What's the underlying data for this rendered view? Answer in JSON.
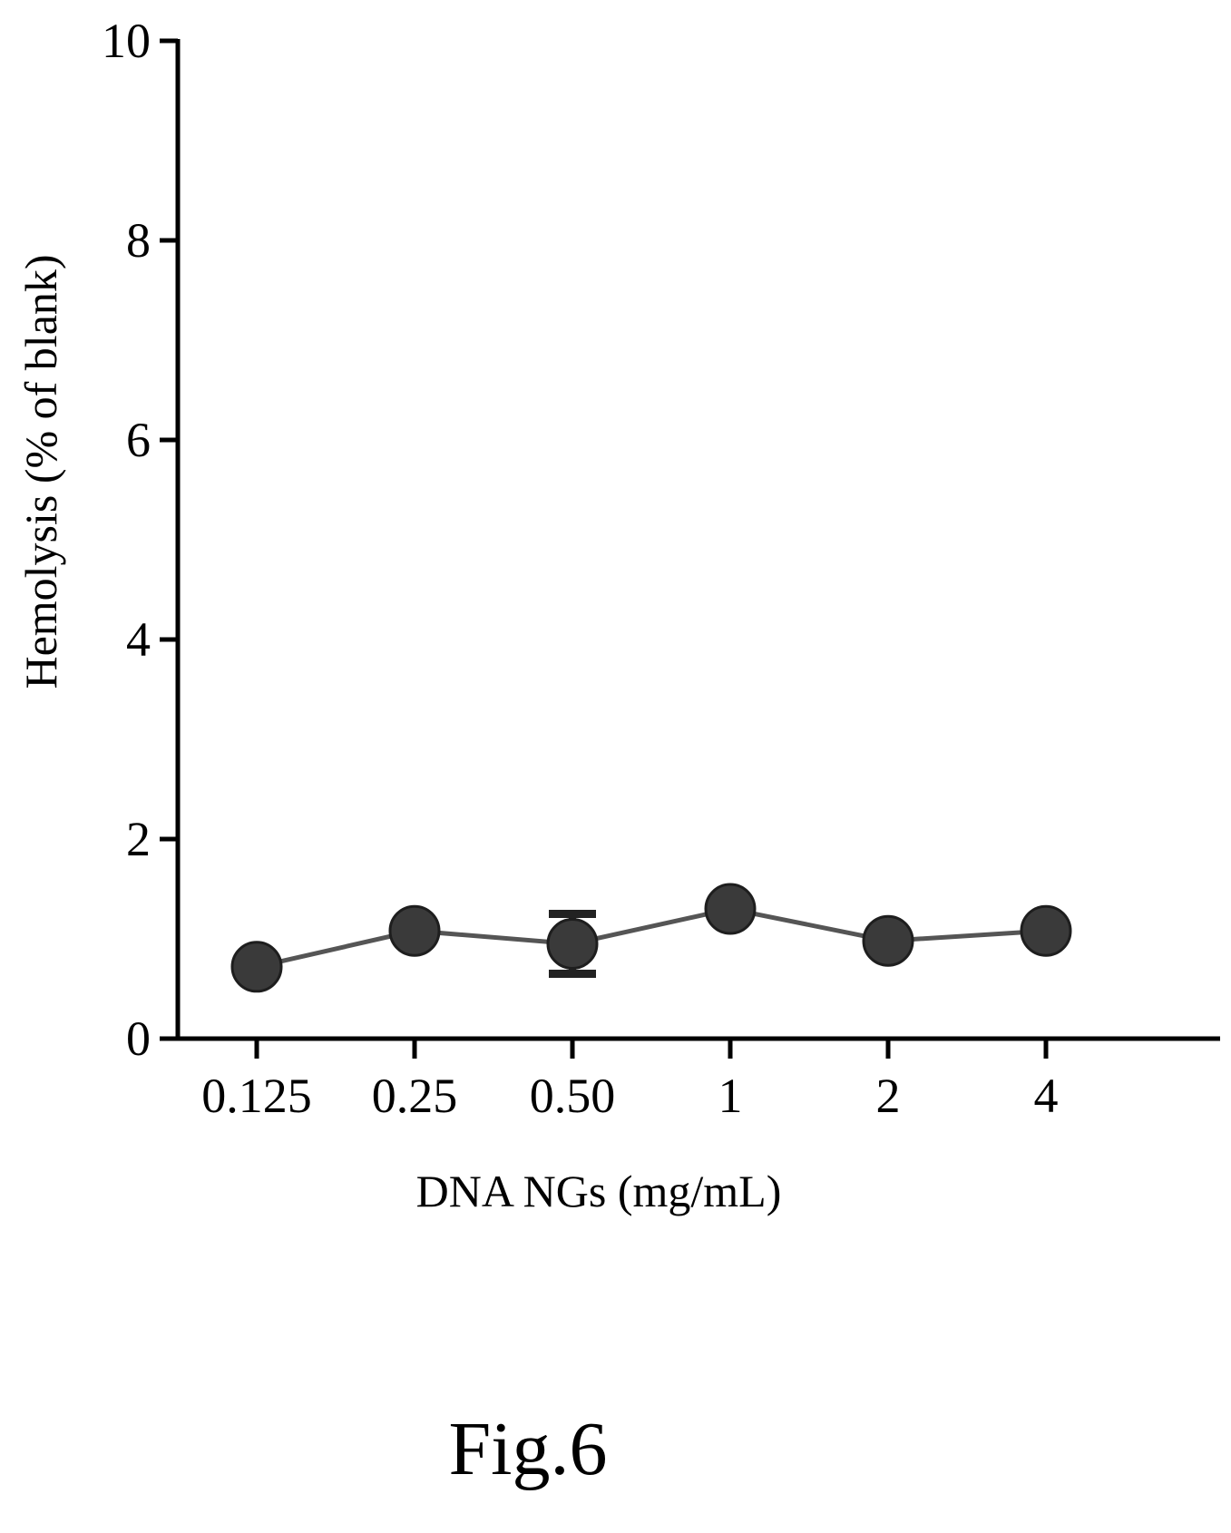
{
  "chart_data": {
    "type": "line",
    "title": "",
    "xlabel": "DNA NGs (mg/mL)",
    "ylabel": "Hemolysis (% of blank)",
    "categories": [
      "0.125",
      "0.25",
      "0.50",
      "1",
      "2",
      "4"
    ],
    "ylim": [
      0,
      10
    ],
    "yticks": [
      "0",
      "2",
      "4",
      "6",
      "8",
      "10"
    ],
    "series": [
      {
        "values": [
          0.72,
          1.08,
          0.95,
          1.3,
          0.98,
          1.08
        ],
        "error": [
          0,
          0,
          0.3,
          0,
          0,
          0
        ]
      }
    ],
    "grid": false,
    "legend": "none",
    "marker_color": "#3a3a3a",
    "line_color": "#555555"
  },
  "figure": {
    "caption": "Fig.6"
  }
}
